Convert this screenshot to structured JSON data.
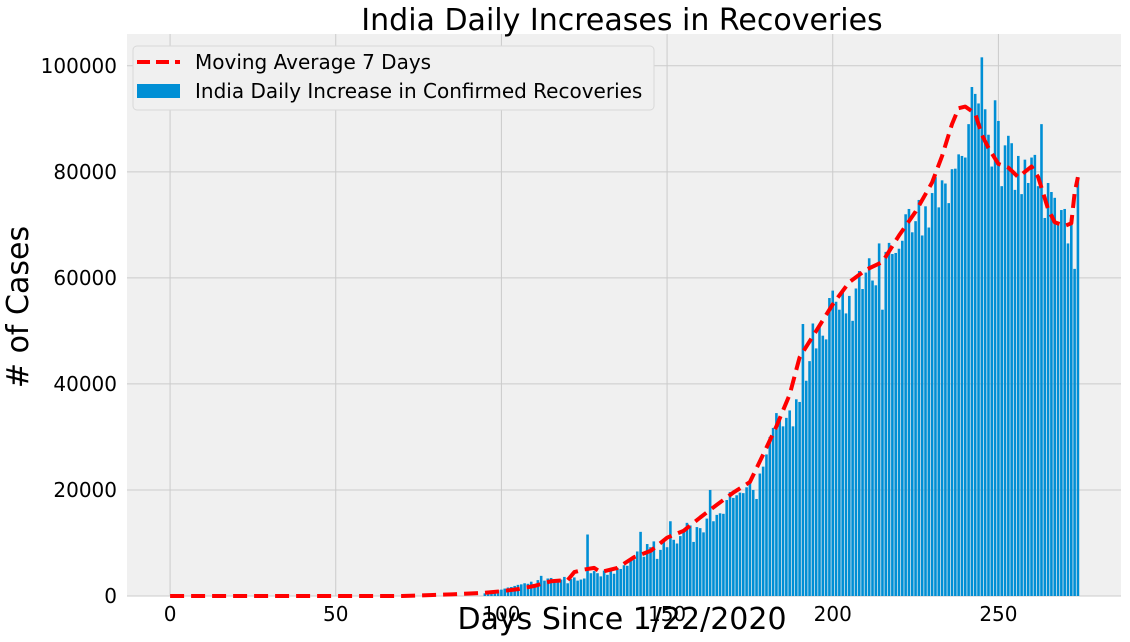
{
  "chart_data": {
    "type": "bar",
    "title": "India Daily Increases in Recoveries",
    "xlabel": "Days Since 1/22/2020",
    "ylabel": "# of Cases",
    "xlim": [
      -13,
      287
    ],
    "ylim": [
      0,
      106000
    ],
    "xticks": [
      0,
      50,
      100,
      150,
      200,
      250
    ],
    "xtick_labels": [
      "0",
      "50",
      "100",
      "150",
      "200",
      "250"
    ],
    "yticks": [
      0,
      20000,
      40000,
      60000,
      80000,
      100000
    ],
    "ytick_labels": [
      "0",
      "20000",
      "40000",
      "60000",
      "80000",
      "100000"
    ],
    "grid": true,
    "legend_position": "top-left",
    "series": [
      {
        "name": "India Daily Increase in Confirmed Recoveries",
        "kind": "bar",
        "color": "#008fd5",
        "x_start": 0,
        "values": [
          0,
          0,
          0,
          0,
          0,
          0,
          0,
          0,
          0,
          0,
          0,
          0,
          0,
          0,
          0,
          0,
          0,
          0,
          0,
          0,
          0,
          0,
          0,
          0,
          0,
          0,
          0,
          0,
          0,
          0,
          0,
          0,
          0,
          0,
          0,
          0,
          0,
          0,
          0,
          0,
          0,
          0,
          0,
          0,
          0,
          0,
          0,
          0,
          0,
          0,
          0,
          0,
          0,
          0,
          0,
          0,
          0,
          0,
          0,
          0,
          0,
          0,
          0,
          0,
          0,
          0,
          0,
          0,
          0,
          0,
          0,
          0,
          0,
          0,
          0,
          0,
          0,
          0,
          0,
          0,
          0,
          0,
          0,
          0,
          0,
          0,
          0,
          0,
          0,
          0,
          0,
          0,
          0,
          0,
          0,
          500,
          650,
          800,
          950,
          1100,
          1200,
          1400,
          1600,
          1700,
          1900,
          2100,
          2200,
          2400,
          2300,
          2700,
          2200,
          3000,
          3800,
          2900,
          3300,
          3400,
          2800,
          3200,
          3100,
          3600,
          2400,
          3200,
          3500,
          2900,
          3100,
          3300,
          11600,
          4300,
          4700,
          4300,
          3700,
          4800,
          4000,
          4900,
          4200,
          5300,
          5100,
          5800,
          5700,
          7000,
          6900,
          8400,
          12100,
          7400,
          9800,
          9200,
          10300,
          7000,
          8700,
          10300,
          9200,
          14100,
          10600,
          9900,
          11300,
          12600,
          13800,
          13300,
          10200,
          13000,
          12800,
          12000,
          14600,
          20000,
          14100,
          15300,
          15600,
          15500,
          18100,
          19600,
          18500,
          19000,
          19500,
          19400,
          20500,
          21400,
          20000,
          18300,
          23100,
          24400,
          26700,
          30000,
          31700,
          34500,
          33800,
          32000,
          33600,
          35000,
          32000,
          37100,
          36600,
          51300,
          40600,
          44300,
          51400,
          46700,
          51200,
          49100,
          48400,
          56200,
          57600,
          55500,
          54000,
          57400,
          53300,
          56600,
          51900,
          58000,
          61300,
          57900,
          61000,
          63700,
          59500,
          58600,
          66500,
          54000,
          64900,
          66600,
          64500,
          64700,
          65500,
          67000,
          72000,
          73000,
          68600,
          70700,
          74700,
          68000,
          73500,
          69500,
          76000,
          79000,
          73300,
          78400,
          77800,
          74100,
          80500,
          80600,
          83300,
          83000,
          82700,
          89000,
          96000,
          94700,
          92900,
          101600,
          91800,
          87000,
          81000,
          93500,
          89600,
          77300,
          85000,
          86800,
          85400,
          76600,
          83000,
          75800,
          82300,
          77900,
          82700,
          83200,
          77300,
          89000,
          71300,
          77900,
          76200,
          75100,
          70600,
          72800,
          73000,
          66500,
          70400,
          61700,
          79000
        ]
      },
      {
        "name": "Moving Average 7 Days",
        "kind": "line",
        "color": "#ff0000",
        "style": "dashed",
        "points": [
          [
            0,
            0
          ],
          [
            50,
            0
          ],
          [
            70,
            0
          ],
          [
            85,
            300
          ],
          [
            95,
            600
          ],
          [
            100,
            900
          ],
          [
            105,
            1300
          ],
          [
            110,
            1900
          ],
          [
            115,
            2800
          ],
          [
            120,
            3000
          ],
          [
            122,
            4500
          ],
          [
            125,
            5000
          ],
          [
            128,
            5300
          ],
          [
            130,
            4500
          ],
          [
            135,
            5300
          ],
          [
            140,
            7300
          ],
          [
            145,
            8500
          ],
          [
            150,
            11000
          ],
          [
            155,
            12300
          ],
          [
            160,
            14800
          ],
          [
            165,
            17200
          ],
          [
            170,
            19500
          ],
          [
            175,
            21500
          ],
          [
            180,
            28000
          ],
          [
            183,
            32000
          ],
          [
            187,
            38000
          ],
          [
            190,
            45000
          ],
          [
            195,
            50000
          ],
          [
            200,
            55000
          ],
          [
            205,
            59200
          ],
          [
            210,
            61500
          ],
          [
            215,
            63000
          ],
          [
            220,
            68000
          ],
          [
            225,
            72500
          ],
          [
            230,
            78000
          ],
          [
            233,
            83000
          ],
          [
            236,
            89000
          ],
          [
            238,
            92000
          ],
          [
            240,
            92300
          ],
          [
            243,
            91000
          ],
          [
            245,
            87000
          ],
          [
            247,
            84500
          ],
          [
            250,
            81500
          ],
          [
            253,
            80800
          ],
          [
            256,
            79000
          ],
          [
            258,
            80000
          ],
          [
            260,
            81000
          ],
          [
            262,
            79000
          ],
          [
            265,
            73000
          ],
          [
            267,
            70500
          ],
          [
            270,
            69800
          ],
          [
            272,
            70300
          ],
          [
            273,
            76000
          ],
          [
            274,
            79000
          ]
        ]
      }
    ]
  }
}
